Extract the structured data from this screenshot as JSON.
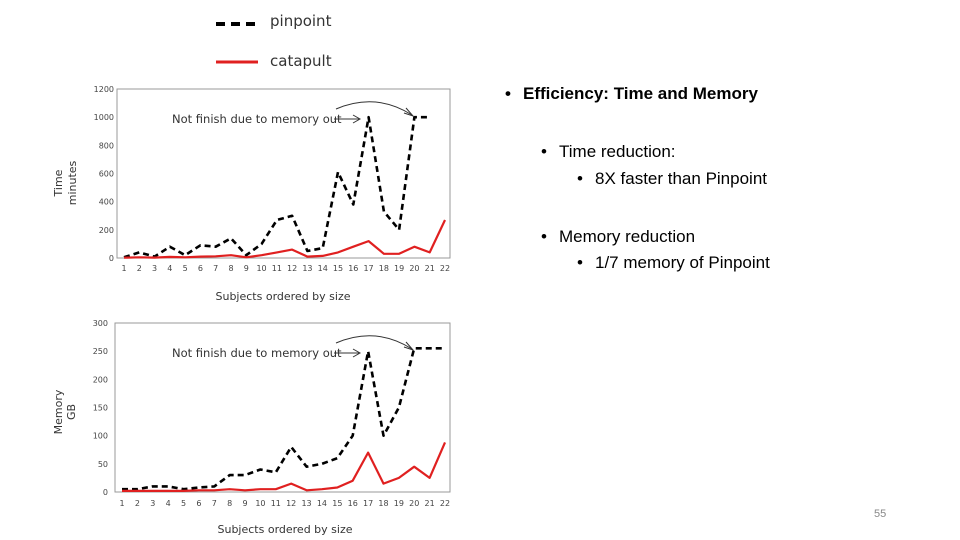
{
  "legend": {
    "items": [
      {
        "label": "pinpoint",
        "style": "dashed",
        "color": "#000000"
      },
      {
        "label": "catapult",
        "style": "solid",
        "color": "#e02020"
      }
    ]
  },
  "chart_data": [
    {
      "type": "line",
      "id": "time",
      "ylabel_line1": "Time",
      "ylabel_line2": "minutes",
      "xlabel": "Subjects ordered by size",
      "ylim": [
        0,
        1200
      ],
      "yticks": [
        0,
        200,
        400,
        600,
        800,
        1000,
        1200
      ],
      "categories": [
        "1",
        "2",
        "3",
        "4",
        "5",
        "6",
        "7",
        "8",
        "9",
        "10",
        "11",
        "12",
        "13",
        "14",
        "15",
        "16",
        "17",
        "18",
        "19",
        "20",
        "21",
        "22"
      ],
      "annotation": "Not finish due to memory out",
      "series": [
        {
          "name": "pinpoint",
          "color": "#000000",
          "dashed": true,
          "values": [
            5,
            40,
            10,
            80,
            20,
            90,
            80,
            140,
            20,
            100,
            270,
            300,
            50,
            70,
            610,
            380,
            1000,
            330,
            200,
            1000,
            1000,
            null
          ]
        },
        {
          "name": "catapult",
          "color": "#e02020",
          "dashed": false,
          "values": [
            2,
            5,
            3,
            8,
            5,
            10,
            12,
            20,
            5,
            20,
            40,
            60,
            10,
            15,
            40,
            80,
            120,
            30,
            30,
            80,
            40,
            270
          ]
        }
      ]
    },
    {
      "type": "line",
      "id": "memory",
      "ylabel_line1": "Memory",
      "ylabel_line2": "GB",
      "xlabel": "Subjects ordered by size",
      "ylim": [
        0,
        300
      ],
      "yticks": [
        0,
        50,
        100,
        150,
        200,
        250,
        300
      ],
      "categories": [
        "1",
        "2",
        "3",
        "4",
        "5",
        "6",
        "7",
        "8",
        "9",
        "10",
        "11",
        "12",
        "13",
        "14",
        "15",
        "16",
        "17",
        "18",
        "19",
        "20",
        "21",
        "22"
      ],
      "annotation": "Not finish due to memory out",
      "series": [
        {
          "name": "pinpoint",
          "color": "#000000",
          "dashed": true,
          "values": [
            5,
            5,
            10,
            10,
            5,
            8,
            10,
            30,
            30,
            40,
            35,
            80,
            45,
            50,
            60,
            100,
            250,
            100,
            150,
            255,
            255,
            255
          ]
        },
        {
          "name": "catapult",
          "color": "#e02020",
          "dashed": false,
          "values": [
            2,
            2,
            2,
            2,
            2,
            3,
            3,
            5,
            3,
            5,
            5,
            15,
            3,
            5,
            8,
            20,
            70,
            15,
            25,
            45,
            25,
            88
          ]
        }
      ]
    }
  ],
  "bullets": {
    "heading": "Efficiency: Time and Memory",
    "time_reduction": "Time reduction:",
    "time_detail": "8X faster than Pinpoint",
    "memory_reduction": "Memory reduction",
    "memory_detail": "1/7 memory of Pinpoint"
  },
  "page_number": "55"
}
